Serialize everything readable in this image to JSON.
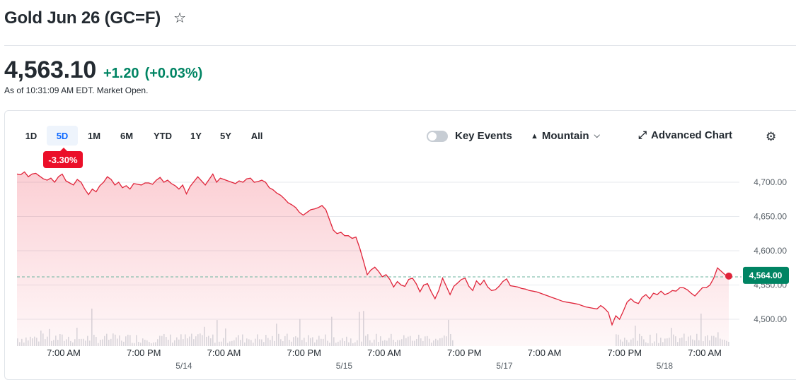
{
  "header": {
    "title": "Gold Jun 26 (GC=F)",
    "price": "4,563.10",
    "change": "+1.20",
    "change_pct": "(+0.03%)",
    "as_of": "As of 10:31:09 AM EDT. Market Open."
  },
  "toolbar": {
    "ranges": [
      "1D",
      "5D",
      "1M",
      "6M",
      "YTD",
      "1Y",
      "5Y",
      "All"
    ],
    "active_range": "5D",
    "period_change": "-3.30%",
    "key_events_label": "Key Events",
    "key_events_on": false,
    "chart_style_label": "Mountain",
    "advanced_chart_label": "Advanced Chart"
  },
  "colors": {
    "up": "#008463",
    "down": "#eb0f29",
    "line": "#e0243a",
    "active_tab": "#0f69ff"
  },
  "chart_data": {
    "type": "area",
    "title": "",
    "xlabel": "",
    "ylabel": "",
    "ylim": [
      4480,
      4725
    ],
    "yticks": [
      "4,700.00",
      "4,650.00",
      "4,600.00",
      "4,550.00",
      "4,500.00"
    ],
    "ytick_values": [
      4700,
      4650,
      4600,
      4550,
      4500
    ],
    "xticks": [
      "7:00 AM",
      "7:00 PM",
      "7:00 AM",
      "7:00 PM",
      "7:00 AM",
      "7:00 PM",
      "7:00 AM",
      "7:00 PM",
      "7:00 AM"
    ],
    "date_labels": [
      {
        "label": "5/14",
        "tick_index": 1.5
      },
      {
        "label": "5/15",
        "tick_index": 3.5
      },
      {
        "label": "5/17",
        "tick_index": 5.5
      },
      {
        "label": "5/18",
        "tick_index": 7.5
      }
    ],
    "previous_close": 4561.9,
    "last_price_label": "4,564.00",
    "last_price": 4564.0,
    "series": [
      {
        "values": [
          4712,
          4711,
          4715,
          4708,
          4712,
          4713,
          4709,
          4705,
          4703,
          4706,
          4700,
          4708,
          4712,
          4702,
          4699,
          4696,
          4704,
          4700,
          4690,
          4682,
          4690,
          4686,
          4695,
          4700,
          4708,
          4704,
          4696,
          4700,
          4692,
          4695,
          4690,
          4698,
          4697,
          4696,
          4699,
          4699,
          4697,
          4703,
          4707,
          4700,
          4703,
          4698,
          4695,
          4690,
          4696,
          4683,
          4694,
          4701,
          4708,
          4702,
          4696,
          4704,
          4712,
          4700,
          4706,
          4704,
          4702,
          4700,
          4698,
          4702,
          4700,
          4705,
          4706,
          4700,
          4701,
          4703,
          4700,
          4692,
          4689,
          4684,
          4681,
          4676,
          4670,
          4667,
          4663,
          4656,
          4652,
          4656,
          4660,
          4661,
          4663,
          4666,
          4660,
          4645,
          4630,
          4625,
          4627,
          4622,
          4622,
          4618,
          4620,
          4604,
          4585,
          4565,
          4572,
          4576,
          4570,
          4562,
          4565,
          4558,
          4547,
          4555,
          4550,
          4548,
          4558,
          4560,
          4552,
          4540,
          4550,
          4552,
          4540,
          4530,
          4542,
          4560,
          4548,
          4536,
          4548,
          4553,
          4558,
          4560,
          4548,
          4542,
          4556,
          4550,
          4557,
          4547,
          4542,
          4543,
          4548,
          4555,
          4559,
          4549,
          4548,
          4547,
          4545,
          4544,
          4542,
          4541,
          4540,
          4538,
          4536,
          4534,
          4532,
          4530,
          4528,
          4526,
          4525,
          4524,
          4523,
          4522,
          4520,
          4518,
          4517,
          4516,
          4515,
          4520,
          4516,
          4510,
          4492,
          4505,
          4500,
          4512,
          4525,
          4530,
          4525,
          4523,
          4532,
          4536,
          4530,
          4538,
          4536,
          4541,
          4536,
          4538,
          4542,
          4541,
          4546,
          4546,
          4543,
          4538,
          4534,
          4540,
          4546,
          4546,
          4550,
          4560,
          4575,
          4570,
          4565,
          4563
        ]
      }
    ]
  }
}
